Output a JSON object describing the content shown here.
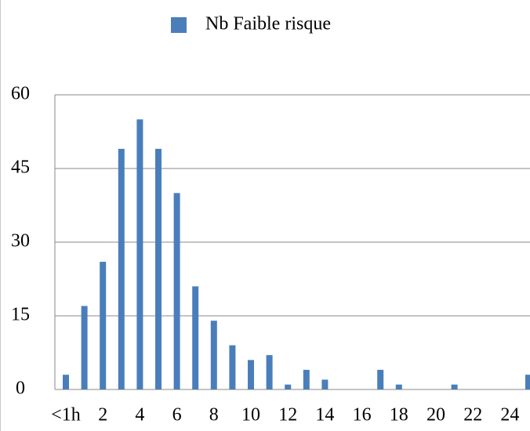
{
  "chart_data": {
    "type": "bar",
    "categories": [
      "<1h",
      null,
      "2",
      null,
      "4",
      null,
      "6",
      null,
      "8",
      null,
      "10",
      null,
      "12",
      null,
      "14",
      null,
      "16",
      null,
      "18",
      null,
      "20",
      null,
      "22",
      null,
      "24",
      null
    ],
    "series": [
      {
        "name": "Nb Faible risque",
        "color": "#4a7ebb",
        "values": [
          3,
          17,
          26,
          49,
          55,
          49,
          40,
          21,
          14,
          9,
          6,
          7,
          1,
          4,
          2,
          0,
          0,
          4,
          1,
          0,
          0,
          1,
          0,
          0,
          0,
          3
        ]
      }
    ],
    "ylim": [
      0,
      60
    ],
    "yticks": [
      0,
      15,
      30,
      45,
      60
    ],
    "grid": true,
    "legend": "top"
  }
}
